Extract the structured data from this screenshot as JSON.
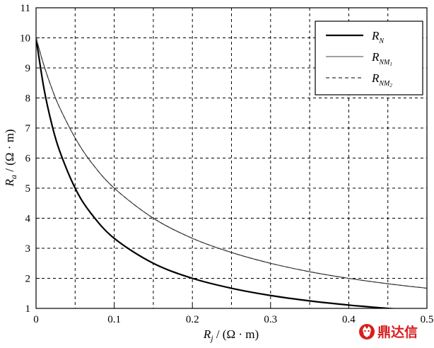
{
  "chart_data": {
    "type": "line",
    "x_axis": {
      "label_main": "R",
      "label_sub": "j",
      "label_unit": " / (Ω · m)",
      "min": 0,
      "max": 0.5,
      "ticks": [
        0,
        0.1,
        0.2,
        0.3,
        0.4,
        0.5
      ],
      "tick_labels": [
        "0",
        "0.1",
        "0.2",
        "0.3",
        "0.4",
        "0.5"
      ],
      "grid_lines": [
        0.05,
        0.1,
        0.15,
        0.2,
        0.25,
        0.3,
        0.35,
        0.4,
        0.45
      ]
    },
    "y_axis": {
      "label_main": "R",
      "label_sub": "a",
      "label_unit": " / (Ω · m)",
      "min": 1,
      "max": 11,
      "ticks": [
        1,
        2,
        3,
        4,
        5,
        6,
        7,
        8,
        9,
        10,
        11
      ],
      "tick_labels": [
        "1",
        "2",
        "3",
        "4",
        "5",
        "6",
        "7",
        "8",
        "9",
        "10",
        "11"
      ]
    },
    "grid": true,
    "grid_style": "dashed",
    "legend_position": "top-right",
    "series": [
      {
        "id": "RN",
        "legend_main": "R",
        "legend_sub": "N",
        "legend_subsub": "",
        "line_style": "solid",
        "stroke_width": "thick",
        "x": [
          0,
          0.01,
          0.02,
          0.03,
          0.05,
          0.07,
          0.1,
          0.15,
          0.2,
          0.25,
          0.3,
          0.35,
          0.4,
          0.45,
          0.5
        ],
        "y": [
          10.0,
          8.33,
          7.14,
          6.25,
          5.0,
          4.17,
          3.33,
          2.5,
          2.0,
          1.67,
          1.43,
          1.25,
          1.11,
          1.0,
          0.91
        ]
      },
      {
        "id": "RNM1",
        "legend_main": "R",
        "legend_sub": "NM",
        "legend_subsub": "1",
        "line_style": "solid",
        "stroke_width": "thin",
        "x": [
          0,
          0.01,
          0.02,
          0.03,
          0.05,
          0.07,
          0.1,
          0.15,
          0.2,
          0.25,
          0.3,
          0.35,
          0.4,
          0.45,
          0.5
        ],
        "y": [
          10.0,
          9.09,
          8.33,
          7.69,
          6.67,
          5.88,
          5.0,
          4.0,
          3.33,
          2.86,
          2.5,
          2.22,
          2.0,
          1.82,
          1.67
        ]
      },
      {
        "id": "RNM2",
        "legend_main": "R",
        "legend_sub": "NM",
        "legend_subsub": "2",
        "line_style": "dashed",
        "stroke_width": "thin",
        "x": [
          0,
          0.01,
          0.02,
          0.03,
          0.05,
          0.07,
          0.1,
          0.15,
          0.2,
          0.25,
          0.3,
          0.35,
          0.4,
          0.45,
          0.5
        ],
        "y": [
          10.0,
          9.09,
          8.33,
          7.69,
          6.67,
          5.88,
          5.0,
          4.0,
          3.33,
          2.86,
          2.5,
          2.22,
          2.0,
          1.82,
          1.67
        ]
      }
    ]
  },
  "watermark": {
    "text": "鼎达信",
    "icon": "fox-logo-icon",
    "color": "#d81e1e"
  }
}
